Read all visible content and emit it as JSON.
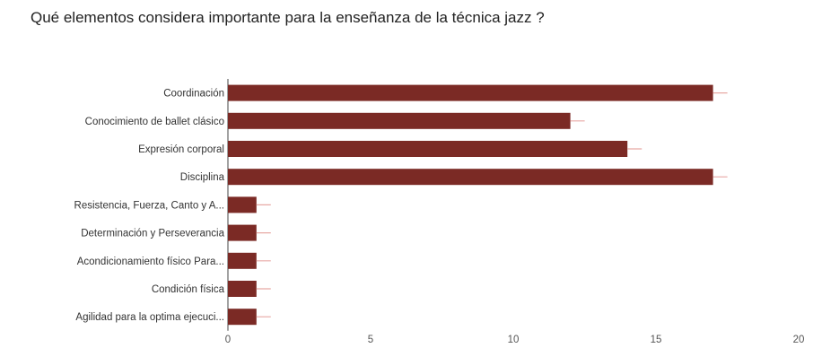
{
  "chart_data": {
    "type": "bar",
    "orientation": "horizontal",
    "title": "Qué elementos considera importante para la enseñanza de la técnica jazz ?",
    "categories": [
      "Coordinación",
      "Conocimiento de ballet clásico",
      "Expresión corporal",
      "Disciplina",
      "Resistencia, Fuerza, Canto y A...",
      "Determinación y Perseverancia",
      "Acondicionamiento físico Para...",
      "Condición física",
      "Agilidad para la optima ejecuci..."
    ],
    "values": [
      17,
      12,
      14,
      17,
      1,
      1,
      1,
      1,
      1
    ],
    "xlim": [
      0,
      20
    ],
    "xticks": [
      "0",
      "5",
      "10",
      "15",
      "20"
    ],
    "bar_color": "#7b2a25",
    "grid": false,
    "legend": "none"
  }
}
